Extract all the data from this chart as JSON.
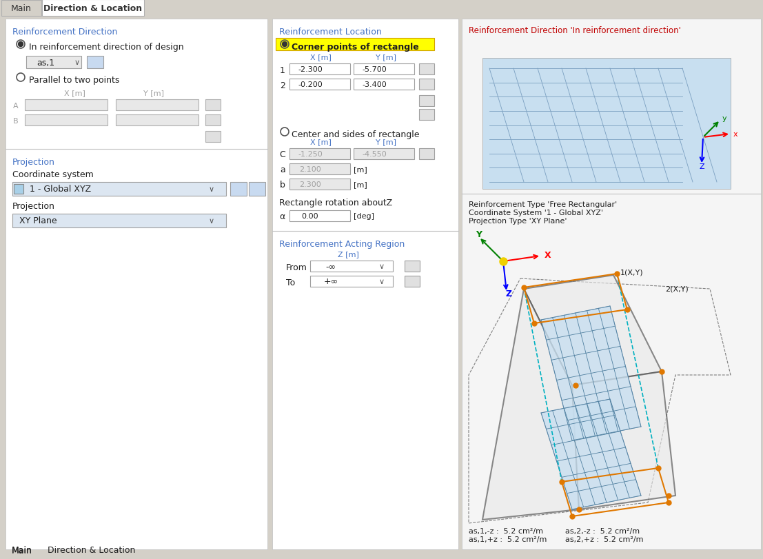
{
  "bg_color": "#d4d0c8",
  "panel_bg": "#ffffff",
  "panel_bg2": "#f0f0f0",
  "tab_active_bg": "#ffffff",
  "tab_inactive_bg": "#d4d0c8",
  "section_title_color": "#4472c4",
  "text_color": "#1f1f1f",
  "input_bg": "#e8e8e8",
  "highlight_bg": "#ffff00",
  "blue_input_bg": "#dce6f1",
  "title_main": "Main",
  "title_dir_loc": "Direction & Location",
  "reinf_dir_title": "Reinforcement Direction",
  "radio1_label": "In reinforcement direction of design",
  "radio2_label": "Parallel to two points",
  "dropdown1_label": "as,1",
  "col_x": "X [m]",
  "col_y": "Y [m]",
  "row_a": "A",
  "row_b": "B",
  "projection_title": "Projection",
  "coord_sys_label": "Coordinate system",
  "coord_sys_val": "1 - Global XYZ",
  "proj_label": "Projection",
  "proj_val": "XY Plane",
  "reinf_loc_title": "Reinforcement Location",
  "corner_pts_label": "Corner points of rectangle",
  "row1_x": "-2.300",
  "row1_y": "-5.700",
  "row2_x": "-0.200",
  "row2_y": "-3.400",
  "center_sides_label": "Center and sides of rectangle",
  "c_x": "-1.250",
  "c_y": "-4.550",
  "a_val": "2.100",
  "b_val": "2.300",
  "rect_rotation_label": "Rectangle rotation aboutZ",
  "alpha_val": "0.00",
  "acting_region_title": "Reinforcement Acting Region",
  "z_m": "Z [m]",
  "from_label": "From",
  "from_val": "-∞",
  "to_label": "To",
  "to_val": "+∞",
  "viz_title1": "Reinforcement Direction 'In reinforcement direction'",
  "viz_title2": "Reinforcement Type 'Free Rectangular'",
  "viz_title3": "Coordinate System '1 - Global XYZ'",
  "viz_title4": "Projection Type 'XY Plane'",
  "as11_label": "as,1,-z",
  "as11_val": "5.2 cm²/m",
  "as21_label": "as,2,-z",
  "as21_val": "5.2 cm²/m",
  "as12_label": "as,1,+z",
  "as12_val": "5.2 cm²/m",
  "as22_label": "as,2,+z",
  "as22_val": "5.2 cm²/m"
}
